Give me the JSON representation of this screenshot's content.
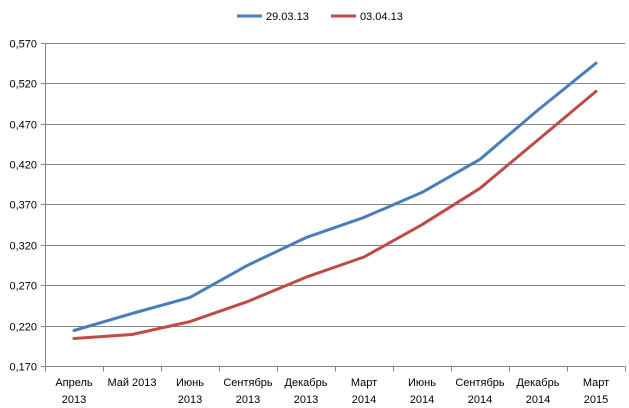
{
  "chart_data": {
    "type": "line",
    "title": "",
    "xlabel": "",
    "ylabel": "",
    "categories": [
      [
        "Апрель",
        "2013"
      ],
      [
        "Май 2013"
      ],
      [
        "Июнь",
        "2013"
      ],
      [
        "Сентябрь",
        "2013"
      ],
      [
        "Декабрь",
        "2013"
      ],
      [
        "Март",
        "2014"
      ],
      [
        "Июнь",
        "2014"
      ],
      [
        "Сентябрь",
        "2014"
      ],
      [
        "Декабрь",
        "2014"
      ],
      [
        "Март",
        "2015"
      ]
    ],
    "ylim": [
      0.17,
      0.57
    ],
    "yticks": [
      0.17,
      0.22,
      0.27,
      0.32,
      0.37,
      0.42,
      0.47,
      0.52,
      0.57
    ],
    "ytick_labels": [
      "0,170",
      "0,220",
      "0,270",
      "0,320",
      "0,370",
      "0,420",
      "0,470",
      "0,520",
      "0,570"
    ],
    "grid": true,
    "legend": "top-center",
    "series": [
      {
        "name": "29.03.13",
        "color": "#4a7ebb",
        "values": [
          0.214,
          0.235,
          0.255,
          0.295,
          0.329,
          0.354,
          0.385,
          0.426,
          0.487,
          0.545
        ]
      },
      {
        "name": "03.04.13",
        "color": "#be4b48",
        "values": [
          0.204,
          0.209,
          0.225,
          0.25,
          0.28,
          0.305,
          0.345,
          0.39,
          0.45,
          0.51
        ]
      }
    ]
  }
}
